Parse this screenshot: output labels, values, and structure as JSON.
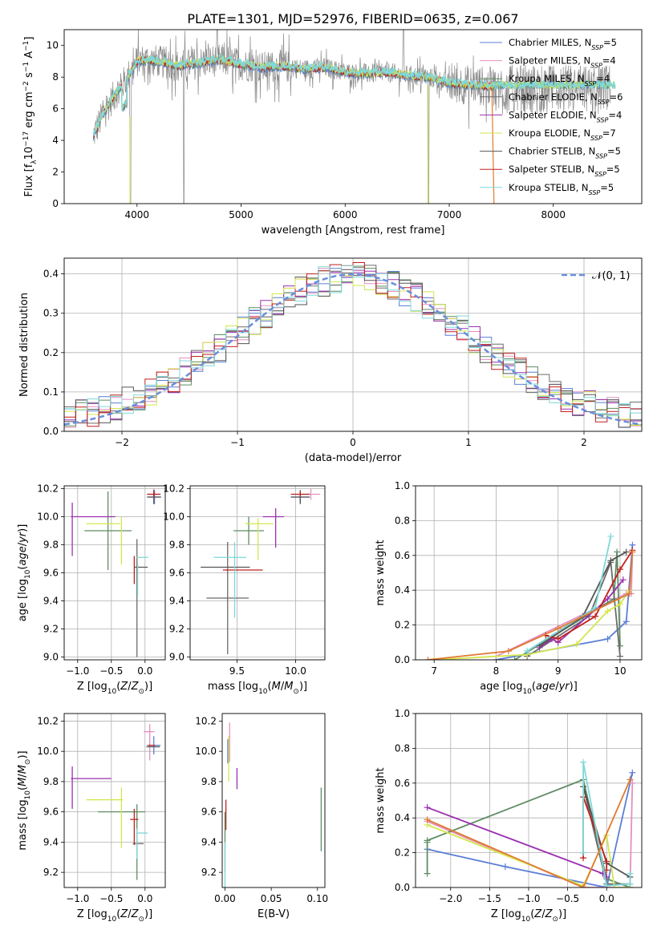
{
  "figure": {
    "title": "PLATE=1301, MJD=52976, FIBERID=0635, z=0.067"
  },
  "colors": {
    "Chabrier MILES": "#5b7fd6",
    "Salpeter MILES": "#e58fbf",
    "Kroupa MILES": "#5f8c64",
    "Chabrier ELODIE": "#6b6b6b",
    "Salpeter ELODIE": "#9b30b0",
    "Kroupa ELODIE": "#d4e64e",
    "Chabrier STELIB": "#545454",
    "Salpeter STELIB": "#c0201c",
    "Kroupa STELIB": "#7fd8d8",
    "normal": "#6a8fdb",
    "data": "#8a8a8a"
  },
  "chart_data": [
    {
      "id": "spectrum",
      "type": "line",
      "xlabel": "wavelength [Angstrom, rest frame]",
      "ylabel": "Flux [f_λ 10^-17 erg cm^-2 s^-1 A^-1]",
      "xlim": [
        3300,
        8850
      ],
      "ylim": [
        0,
        11
      ],
      "xticks": [
        4000,
        5000,
        6000,
        7000,
        8000
      ],
      "yticks": [
        0,
        2,
        4,
        6,
        8,
        10
      ],
      "grid": false,
      "legend_position": "right",
      "legend": [
        {
          "name": "Chabrier MILES",
          "nssp": "5"
        },
        {
          "name": "Salpeter MILES",
          "nssp": "4"
        },
        {
          "name": "Kroupa MILES",
          "nssp": "4"
        },
        {
          "name": "Chabrier ELODIE",
          "nssp": "6"
        },
        {
          "name": "Salpeter ELODIE",
          "nssp": "4"
        },
        {
          "name": "Kroupa ELODIE",
          "nssp": "7"
        },
        {
          "name": "Chabrier STELIB",
          "nssp": "5"
        },
        {
          "name": "Salpeter STELIB",
          "nssp": "5"
        },
        {
          "name": "Kroupa STELIB",
          "nssp": "5"
        }
      ],
      "continuum": {
        "x": [
          3580,
          3700,
          3800,
          3900,
          4000,
          4100,
          4200,
          4400,
          4600,
          4800,
          5000,
          5200,
          5400,
          5600,
          5800,
          6000,
          6200,
          6400,
          6600,
          6800,
          7000,
          7200,
          7400
        ],
        "y": [
          4.3,
          6.0,
          7.0,
          7.9,
          9.0,
          9.1,
          9.0,
          8.7,
          8.9,
          9.1,
          8.8,
          8.6,
          8.7,
          8.5,
          8.6,
          8.3,
          8.2,
          8.3,
          8.1,
          8.0,
          7.6,
          7.5,
          7.4
        ]
      },
      "model_extent": {
        "Chabrier MILES": 8550,
        "Kroupa STELIB": 8600,
        "Salpeter STELIB": 7420
      }
    },
    {
      "id": "residuals",
      "type": "histogram",
      "xlabel": "(data-model)/error",
      "ylabel": "Normed distribution",
      "xlim": [
        -2.5,
        2.5
      ],
      "ylim": [
        0,
        0.44
      ],
      "xticks": [
        -2,
        -1,
        0,
        1,
        2
      ],
      "yticks": [
        0.0,
        0.1,
        0.2,
        0.3,
        0.4
      ],
      "grid": true,
      "legend_position": "top-right",
      "legend_label": "𝒩(0, 1)",
      "bins": 50
    },
    {
      "id": "age-vs-Z",
      "type": "errorbar",
      "xlabel": "Z [log10(Z/Z⊙)]",
      "ylabel": "age [log10(age/yr)]",
      "xlim": [
        -1.2,
        0.3
      ],
      "ylim": [
        8.98,
        10.22
      ],
      "xticks": [
        -1.0,
        -0.5,
        0.0
      ],
      "yticks": [
        9.0,
        9.2,
        9.4,
        9.6,
        9.8,
        10.0,
        10.2
      ],
      "grid": true,
      "points": [
        {
          "s": "Chabrier MILES",
          "x": 0.14,
          "xe": 0.1,
          "y": 10.14,
          "ye": 0.05
        },
        {
          "s": "Salpeter MILES",
          "x": 0.13,
          "xe": 0.1,
          "y": 10.16,
          "ye": 0.04
        },
        {
          "s": "Kroupa MILES",
          "x": -0.55,
          "xe": 0.35,
          "y": 9.9,
          "ye": 0.28
        },
        {
          "s": "Chabrier ELODIE",
          "x": -0.12,
          "xe": 0.0,
          "y": 9.42,
          "ye": 0.42
        },
        {
          "s": "Salpeter ELODIE",
          "x": -0.77,
          "xe": 0.33,
          "y": 10.0,
          "ye": 0.0
        },
        {
          "s": "Salpeter ELODIE",
          "x": -1.08,
          "xe": 0.0,
          "y": 9.91,
          "ye": 0.19
        },
        {
          "s": "Kroupa ELODIE",
          "x": -0.62,
          "xe": 0.25,
          "y": 9.95,
          "ye": 0.0
        },
        {
          "s": "Kroupa ELODIE",
          "x": -0.35,
          "xe": 0.0,
          "y": 9.83,
          "ye": 0.17
        },
        {
          "s": "Chabrier STELIB",
          "x": -0.06,
          "xe": 0.1,
          "y": 9.64,
          "ye": 0.0
        },
        {
          "s": "Chabrier STELIB",
          "x": 0.13,
          "xe": 0.1,
          "y": 10.14,
          "ye": 0.05
        },
        {
          "s": "Salpeter STELIB",
          "x": -0.16,
          "xe": 0.0,
          "y": 9.62,
          "ye": 0.1
        },
        {
          "s": "Salpeter STELIB",
          "x": 0.13,
          "xe": 0.1,
          "y": 10.16,
          "ye": 0.02
        },
        {
          "s": "Kroupa STELIB",
          "x": -0.04,
          "xe": 0.09,
          "y": 9.71,
          "ye": 0.0
        },
        {
          "s": "Kroupa STELIB",
          "x": -0.11,
          "xe": 0.0,
          "y": 9.55,
          "ye": 0.12
        }
      ]
    },
    {
      "id": "age-vs-mass",
      "type": "errorbar",
      "xlabel": "mass [log10(M/M⊙)]",
      "xlim": [
        9.1,
        10.25
      ],
      "ylim": [
        8.98,
        10.22
      ],
      "xticks": [
        9.5,
        10.0
      ],
      "yticks": [
        9.0,
        9.2,
        9.4,
        9.6,
        9.8,
        10.0,
        10.2
      ],
      "grid": true,
      "points": [
        {
          "s": "Chabrier MILES",
          "x": 10.04,
          "xe": 0.08,
          "y": 10.14,
          "ye": 0.04
        },
        {
          "s": "Salpeter MILES",
          "x": 10.13,
          "xe": 0.08,
          "y": 10.16,
          "ye": 0.04
        },
        {
          "s": "Kroupa MILES",
          "x": 9.6,
          "xe": 0.13,
          "y": 9.9,
          "ye": 0.1
        },
        {
          "s": "Chabrier ELODIE",
          "x": 9.42,
          "xe": 0.18,
          "y": 9.42,
          "ye": 0.4
        },
        {
          "s": "Salpeter ELODIE",
          "x": 9.81,
          "xe": 0.09,
          "y": 10.0,
          "ye": 0.0
        },
        {
          "s": "Salpeter ELODIE",
          "x": 9.83,
          "xe": 0.0,
          "y": 9.92,
          "ye": 0.14
        },
        {
          "s": "Kroupa ELODIE",
          "x": 9.69,
          "xe": 0.12,
          "y": 9.95,
          "ye": 0.0
        },
        {
          "s": "Kroupa ELODIE",
          "x": 9.68,
          "xe": 0.0,
          "y": 9.84,
          "ye": 0.15
        },
        {
          "s": "Chabrier STELIB",
          "x": 9.4,
          "xe": 0.21,
          "y": 9.64,
          "ye": 0.0
        },
        {
          "s": "Chabrier STELIB",
          "x": 10.04,
          "xe": 0.08,
          "y": 10.14,
          "ye": 0.05
        },
        {
          "s": "Salpeter STELIB",
          "x": 9.55,
          "xe": 0.17,
          "y": 9.62,
          "ye": 0.0
        },
        {
          "s": "Salpeter STELIB",
          "x": 10.04,
          "xe": 0.08,
          "y": 10.16,
          "ye": 0.02
        },
        {
          "s": "Kroupa STELIB",
          "x": 9.44,
          "xe": 0.14,
          "y": 9.71,
          "ye": 0.0
        },
        {
          "s": "Kroupa STELIB",
          "x": 9.48,
          "xe": 0.0,
          "y": 9.55,
          "ye": 0.27
        }
      ]
    },
    {
      "id": "massweight-vs-age",
      "type": "line",
      "xlabel": "age [log10(age/yr)]",
      "ylabel": "mass weight",
      "xlim": [
        6.7,
        10.35
      ],
      "ylim": [
        0,
        1.0
      ],
      "xticks": [
        7,
        8,
        9,
        10
      ],
      "yticks": [
        0.0,
        0.2,
        0.4,
        0.6,
        0.8,
        1.0
      ],
      "grid": true,
      "series": [
        {
          "s": "Chabrier MILES",
          "x": [
            8.0,
            9.8,
            10.1,
            10.2
          ],
          "y": [
            0.0,
            0.12,
            0.22,
            0.66
          ]
        },
        {
          "s": "Salpeter MILES",
          "x": [
            8.0,
            10.1,
            10.18,
            10.2
          ],
          "y": [
            0.02,
            0.38,
            0.38,
            0.62
          ]
        },
        {
          "s": "Kroupa MILES",
          "x": [
            8.3,
            9.9,
            9.95,
            10.0
          ],
          "y": [
            0.0,
            0.35,
            0.62,
            0.08
          ]
        },
        {
          "s": "Chabrier ELODIE",
          "x": [
            8.5,
            9.5,
            9.85,
            10.0
          ],
          "y": [
            0.02,
            0.25,
            0.56,
            0.02
          ]
        },
        {
          "s": "Salpeter ELODIE",
          "x": [
            8.7,
            8.9,
            9.0,
            9.8,
            10.05
          ],
          "y": [
            0.07,
            0.12,
            0.1,
            0.35,
            0.46
          ]
        },
        {
          "s": "Kroupa ELODIE",
          "x": [
            7.0,
            8.5,
            9.3,
            9.8,
            10.0,
            10.15
          ],
          "y": [
            0.0,
            0.03,
            0.09,
            0.28,
            0.32,
            0.4
          ]
        },
        {
          "s": "Chabrier STELIB",
          "x": [
            8.7,
            9.4,
            9.85,
            10.1
          ],
          "y": [
            0.08,
            0.25,
            0.57,
            0.62
          ]
        },
        {
          "s": "Salpeter STELIB",
          "x": [
            8.8,
            9.0,
            9.6,
            10.0,
            10.2
          ],
          "y": [
            0.14,
            0.12,
            0.25,
            0.52,
            0.63
          ]
        },
        {
          "s": "Kroupa STELIB",
          "x": [
            8.5,
            9.6,
            9.85
          ],
          "y": [
            0.05,
            0.3,
            0.71
          ]
        },
        {
          "s": "Salpeter MILES",
          "x": [
            6.9,
            8.2,
            9.0,
            10.15,
            10.2
          ],
          "y": [
            0.0,
            0.05,
            0.18,
            0.38,
            0.62
          ],
          "orange": true
        }
      ]
    },
    {
      "id": "mass-vs-Z",
      "type": "errorbar",
      "xlabel": "Z [log10(Z/Z⊙)]",
      "ylabel": "mass [log10(M/M⊙)]",
      "xlim": [
        -1.2,
        0.3
      ],
      "ylim": [
        9.1,
        10.25
      ],
      "xticks": [
        -1.0,
        -0.5,
        0.0
      ],
      "yticks": [
        9.2,
        9.4,
        9.6,
        9.8,
        10.0,
        10.2
      ],
      "grid": true,
      "points": [
        {
          "s": "Chabrier MILES",
          "x": 0.13,
          "xe": 0.1,
          "y": 10.04,
          "ye": 0.06
        },
        {
          "s": "Salpeter MILES",
          "x": 0.06,
          "xe": 0.08,
          "y": 10.13,
          "ye": 0.0
        },
        {
          "s": "Salpeter MILES",
          "x": 0.07,
          "xe": 0.0,
          "y": 10.06,
          "ye": 0.12
        },
        {
          "s": "Kroupa MILES",
          "x": -0.35,
          "xe": 0.35,
          "y": 9.6,
          "ye": 0.0
        },
        {
          "s": "Kroupa MILES",
          "x": -0.12,
          "xe": 0.0,
          "y": 9.4,
          "ye": 0.25
        },
        {
          "s": "Chabrier ELODIE",
          "x": -0.1,
          "xe": 0.08,
          "y": 9.39,
          "ye": 0.0
        },
        {
          "s": "Salpeter ELODIE",
          "x": -0.8,
          "xe": 0.3,
          "y": 9.82,
          "ye": 0.0
        },
        {
          "s": "Salpeter ELODIE",
          "x": -1.08,
          "xe": 0.0,
          "y": 9.76,
          "ye": 0.14
        },
        {
          "s": "Kroupa ELODIE",
          "x": -0.6,
          "xe": 0.27,
          "y": 9.68,
          "ye": 0.0
        },
        {
          "s": "Kroupa ELODIE",
          "x": -0.35,
          "xe": 0.0,
          "y": 9.56,
          "ye": 0.2
        },
        {
          "s": "Chabrier STELIB",
          "x": 0.12,
          "xe": 0.1,
          "y": 10.03,
          "ye": 0.0
        },
        {
          "s": "Salpeter STELIB",
          "x": -0.16,
          "xe": 0.0,
          "y": 9.5,
          "ye": 0.12
        },
        {
          "s": "Salpeter STELIB",
          "x": -0.16,
          "xe": 0.06,
          "y": 9.55,
          "ye": 0.0
        },
        {
          "s": "Salpeter STELIB",
          "x": 0.1,
          "xe": 0.05,
          "y": 10.04,
          "ye": 0.0
        },
        {
          "s": "Kroupa STELIB",
          "x": -0.04,
          "xe": 0.08,
          "y": 9.46,
          "ye": 0.0
        },
        {
          "s": "Kroupa STELIB",
          "x": -0.12,
          "xe": 0.0,
          "y": 9.39,
          "ye": 0.1
        }
      ]
    },
    {
      "id": "mass-vs-EBV",
      "type": "errorbar",
      "xlabel": "E(B-V)",
      "xlim": [
        -0.003,
        0.108
      ],
      "ylim": [
        9.1,
        10.25
      ],
      "xticks": [
        0.0,
        0.05,
        0.1
      ],
      "yticks": [
        9.2,
        9.4,
        9.6,
        9.8,
        10.0,
        10.2
      ],
      "grid": false,
      "points": [
        {
          "s": "Salpeter MILES",
          "x": 0.005,
          "xe": 0.0,
          "y": 10.06,
          "ye": 0.13
        },
        {
          "s": "Chabrier MILES",
          "x": 0.003,
          "xe": 0.0,
          "y": 10.0,
          "ye": 0.08
        },
        {
          "s": "Kroupa ELODIE",
          "x": 0.004,
          "xe": 0.0,
          "y": 9.95,
          "ye": 0.15
        },
        {
          "s": "Salpeter ELODIE",
          "x": 0.013,
          "xe": 0.0,
          "y": 9.82,
          "ye": 0.07
        },
        {
          "s": "Salpeter STELIB",
          "x": 0.001,
          "xe": 0.0,
          "y": 9.58,
          "ye": 0.1
        },
        {
          "s": "Kroupa MILES",
          "x": 0.0,
          "xe": 0.0,
          "y": 9.4,
          "ye": 0.2
        },
        {
          "s": "Kroupa MILES",
          "x": 0.104,
          "xe": 0.0,
          "y": 9.55,
          "ye": 0.21
        },
        {
          "s": "Kroupa STELIB",
          "x": 0.0,
          "xe": 0.0,
          "y": 9.25,
          "ye": 0.15
        }
      ]
    },
    {
      "id": "massweight-vs-Z",
      "type": "line",
      "xlabel": "Z [log10(Z/Z⊙)]",
      "ylabel": "mass weight",
      "xlim": [
        -2.45,
        0.45
      ],
      "ylim": [
        0,
        1.0
      ],
      "xticks": [
        -2.0,
        -1.5,
        -1.0,
        -0.5,
        0.0
      ],
      "yticks": [
        0.0,
        0.2,
        0.4,
        0.6,
        0.8,
        1.0
      ],
      "grid": true,
      "series": [
        {
          "s": "Chabrier MILES",
          "x": [
            -2.3,
            -1.3,
            0.0,
            0.33,
            0.3
          ],
          "y": [
            0.22,
            0.12,
            0.0,
            0.66,
            0.62
          ]
        },
        {
          "s": "Salpeter MILES",
          "x": [
            -2.3,
            -0.3,
            0.3,
            0.33
          ],
          "y": [
            0.38,
            0.0,
            0.0,
            0.6
          ]
        },
        {
          "s": "Kroupa MILES",
          "x": [
            -2.3,
            -0.3,
            0.0,
            0.3
          ],
          "y": [
            0.27,
            0.62,
            0.05,
            0.0
          ]
        },
        {
          "s": "Kroupa MILES",
          "x": [
            -2.3,
            -2.3
          ],
          "y": [
            0.08,
            0.26
          ]
        },
        {
          "s": "Chabrier ELODIE",
          "x": [
            -0.3,
            0.0,
            0.3
          ],
          "y": [
            0.58,
            0.02,
            0.02
          ]
        },
        {
          "s": "Salpeter ELODIE",
          "x": [
            -2.3,
            -0.05,
            0.0
          ],
          "y": [
            0.46,
            0.08,
            0.06
          ]
        },
        {
          "s": "Kroupa ELODIE",
          "x": [
            -2.3,
            -0.3,
            0.0,
            0.1,
            0.3
          ],
          "y": [
            0.36,
            0.01,
            0.3,
            0.0,
            0.0
          ]
        },
        {
          "s": "Chabrier STELIB",
          "x": [
            -0.3,
            0.0,
            0.3
          ],
          "y": [
            0.58,
            0.14,
            0.06
          ]
        },
        {
          "s": "Salpeter STELIB",
          "x": [
            -0.3,
            -0.3,
            0.0,
            0.0
          ],
          "y": [
            0.17,
            0.52,
            0.15,
            0.1
          ]
        },
        {
          "s": "Kroupa STELIB",
          "x": [
            -0.3,
            -0.3,
            0.0,
            0.3,
            0.3
          ],
          "y": [
            0.2,
            0.72,
            0.01,
            0.02,
            0.08
          ]
        },
        {
          "s": "Salpeter MILES",
          "x": [
            -2.3,
            -0.3,
            0.3
          ],
          "y": [
            0.39,
            0.0,
            0.62
          ],
          "orange": true
        }
      ]
    }
  ]
}
